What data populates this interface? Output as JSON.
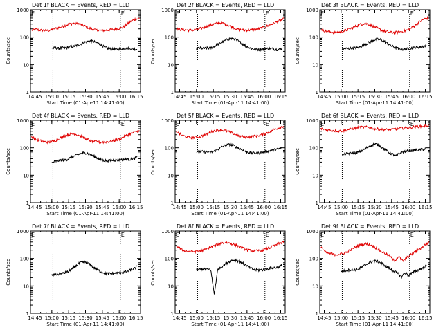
{
  "chart_data": {
    "type": "line",
    "common": {
      "ylabel": "Counts/sec",
      "xlabel": "Start Time (01-Apr-11 14:41:00)",
      "yscale": "log",
      "ylim": [
        1,
        1000
      ],
      "ytick_labels": [
        "1",
        "10",
        "100",
        "1000"
      ],
      "xlim": [
        "14:41",
        "16:19"
      ],
      "xtick_labels": [
        "14:45",
        "15:00",
        "15:15",
        "15:30",
        "15:45",
        "16:00",
        "16:15"
      ],
      "markers": [
        {
          "label": "E",
          "time": "14:41"
        },
        {
          "label": "E",
          "time": "16:01"
        }
      ],
      "dotted_lines": [
        "15:01",
        "16:01"
      ],
      "series_colors": {
        "events": "#000000",
        "lld": "#e00000"
      }
    },
    "panels": [
      {
        "title": "Det 1f BLACK = Events, RED = LLD",
        "events_range": [
          "15:00",
          "16:16"
        ],
        "events": [
          40,
          40,
          38,
          41,
          40,
          44,
          46,
          50,
          55,
          63,
          70,
          72,
          68,
          60,
          50,
          42,
          38,
          36,
          36,
          37,
          38,
          40,
          38,
          37,
          36
        ],
        "lld": [
          180,
          190,
          180,
          175,
          175,
          195,
          215,
          240,
          275,
          305,
          320,
          305,
          270,
          225,
          195,
          180,
          175,
          178,
          182,
          190,
          205,
          225,
          280,
          380,
          450,
          480
        ]
      },
      {
        "title": "Det 2f BLACK = Events, RED = LLD",
        "events_range": [
          "15:00",
          "16:16"
        ],
        "events": [
          38,
          40,
          38,
          40,
          40,
          45,
          52,
          60,
          70,
          82,
          88,
          86,
          76,
          63,
          52,
          44,
          38,
          36,
          35,
          36,
          37,
          38,
          38,
          36,
          35,
          38
        ],
        "lld": [
          210,
          190,
          185,
          180,
          180,
          195,
          215,
          240,
          275,
          310,
          330,
          315,
          280,
          235,
          200,
          185,
          180,
          182,
          190,
          200,
          220,
          250,
          290,
          340,
          400,
          460
        ]
      },
      {
        "title": "Det 3f BLACK = Events, RED = LLD",
        "events_range": [
          "15:01",
          "16:16"
        ],
        "events": [
          36,
          38,
          38,
          40,
          40,
          44,
          50,
          58,
          68,
          78,
          84,
          80,
          70,
          58,
          48,
          42,
          38,
          36,
          36,
          38,
          40,
          42,
          44,
          46,
          48
        ],
        "lld": [
          200,
          165,
          155,
          150,
          150,
          160,
          180,
          210,
          245,
          285,
          315,
          300,
          260,
          215,
          180,
          160,
          150,
          148,
          152,
          160,
          180,
          215,
          280,
          380,
          460,
          510
        ]
      },
      {
        "title": "Det 4f BLACK = Events, RED = LLD",
        "events_range": [
          "15:00",
          "16:16"
        ],
        "events": [
          28,
          32,
          34,
          36,
          36,
          40,
          46,
          52,
          58,
          64,
          65,
          60,
          52,
          44,
          38,
          35,
          34,
          34,
          35,
          36,
          37,
          38,
          38,
          38,
          40,
          45
        ],
        "lld": [
          260,
          200,
          180,
          165,
          160,
          170,
          200,
          245,
          290,
          320,
          320,
          290,
          240,
          200,
          175,
          165,
          160,
          162,
          168,
          180,
          200,
          230,
          280,
          330,
          380,
          410
        ]
      },
      {
        "title": "Det 5f BLACK = Events, RED = LLD",
        "events_range": [
          "15:00",
          "16:16"
        ],
        "events": [
          70,
          72,
          72,
          70,
          68,
          75,
          88,
          105,
          120,
          130,
          125,
          110,
          95,
          82,
          72,
          66,
          64,
          64,
          66,
          70,
          75,
          80,
          85,
          90,
          100
        ],
        "lld": [
          400,
          300,
          260,
          240,
          240,
          250,
          280,
          330,
          390,
          440,
          450,
          420,
          370,
          310,
          270,
          250,
          250,
          260,
          275,
          300,
          340,
          400,
          480,
          560,
          630
        ]
      },
      {
        "title": "Det 6f BLACK = Events, RED = LLD",
        "events_range": [
          "15:01",
          "16:16"
        ],
        "events": [
          55,
          60,
          62,
          64,
          65,
          70,
          80,
          95,
          115,
          130,
          135,
          125,
          100,
          80,
          66,
          58,
          50,
          62,
          70,
          75,
          78,
          80,
          82,
          85,
          88,
          95
        ],
        "lld": [
          500,
          460,
          440,
          420,
          410,
          420,
          460,
          500,
          540,
          570,
          570,
          545,
          500,
          470,
          460,
          460,
          470,
          500,
          520,
          540,
          560,
          580,
          600,
          630,
          670
        ]
      },
      {
        "title": "Det 7f BLACK = Events, RED = LLD",
        "events_range": [
          "15:00",
          "16:16"
        ],
        "events": [
          25,
          26,
          27,
          28,
          30,
          33,
          40,
          50,
          62,
          72,
          75,
          68,
          55,
          45,
          38,
          33,
          30,
          28,
          28,
          29,
          30,
          31,
          32,
          34,
          38,
          42,
          50
        ],
        "lld": []
      },
      {
        "title": "Det 8f BLACK = Events, RED = LLD",
        "events_range": [
          "15:00",
          "16:16"
        ],
        "events": [
          38,
          40,
          42,
          40,
          40,
          5,
          40,
          50,
          62,
          75,
          85,
          88,
          80,
          68,
          55,
          46,
          40,
          38,
          38,
          40,
          42,
          45,
          46,
          48,
          55
        ],
        "lld": [
          300,
          220,
          190,
          180,
          180,
          185,
          200,
          230,
          270,
          320,
          360,
          380,
          360,
          320,
          270,
          230,
          200,
          190,
          190,
          200,
          220,
          250,
          300,
          360,
          420
        ]
      },
      {
        "title": "Det 9f BLACK = Events, RED = LLD",
        "events_range": [
          "15:00",
          "16:16"
        ],
        "events": [
          34,
          36,
          38,
          38,
          38,
          42,
          50,
          60,
          72,
          80,
          80,
          72,
          60,
          48,
          40,
          34,
          28,
          22,
          30,
          24,
          30,
          35,
          40,
          45,
          55
        ],
        "lld": [
          280,
          170,
          150,
          140,
          140,
          150,
          170,
          210,
          260,
          310,
          340,
          330,
          290,
          230,
          180,
          150,
          120,
          80,
          120,
          80,
          110,
          140,
          180,
          230,
          300,
          380
        ]
      }
    ]
  }
}
